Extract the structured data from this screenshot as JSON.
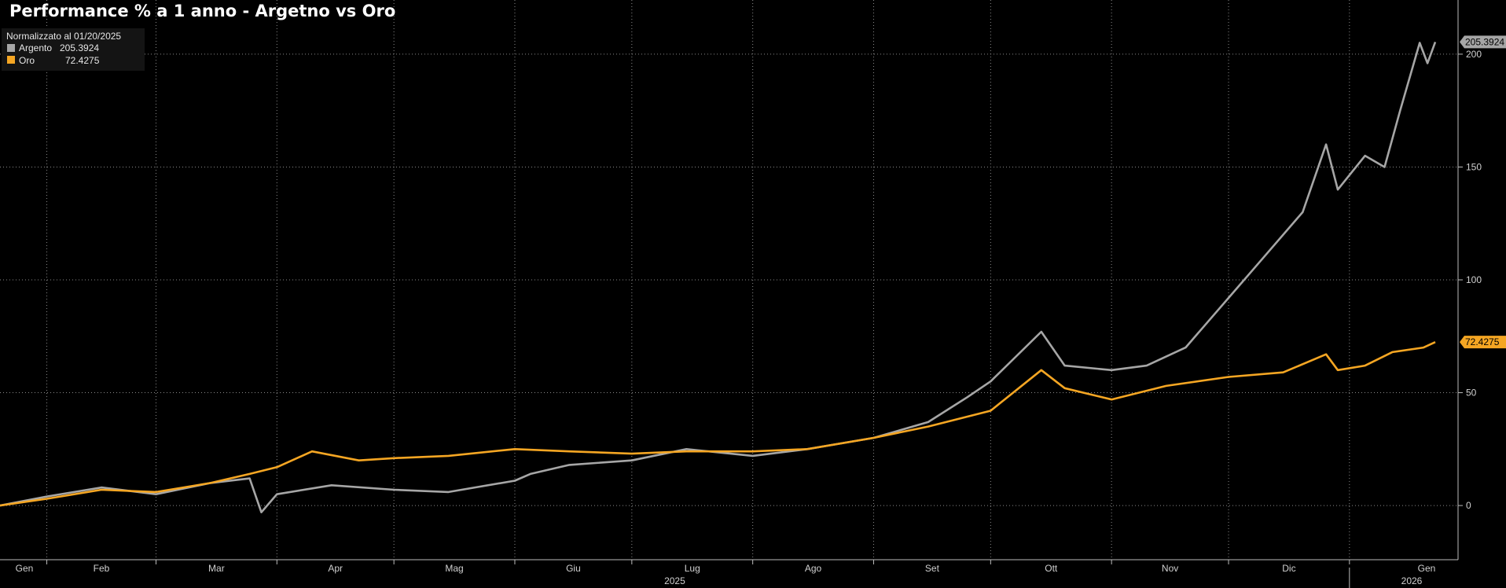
{
  "chart_data": {
    "type": "line",
    "title": "Performance % a 1 anno - Argetno vs Oro",
    "subtitle": "Normalizzato al 01/20/2025",
    "x_months": [
      "Gen",
      "Feb",
      "Mar",
      "Apr",
      "Mag",
      "Giu",
      "Lug",
      "Ago",
      "Set",
      "Ott",
      "Nov",
      "Dic",
      "Gen"
    ],
    "year_labels": [
      "2025",
      "2026"
    ],
    "y_ticks": [
      0,
      50,
      100,
      150,
      200
    ],
    "ylim": [
      -24,
      224
    ],
    "xlim": [
      "2025-01-20",
      "2026-01-23"
    ],
    "grid": true,
    "legend": "top-left",
    "series": [
      {
        "name": "Argento",
        "last_value": "205.3924",
        "color": "#a6a6a6",
        "x": [
          "2025-01-20",
          "2025-02-01",
          "2025-02-15",
          "2025-03-01",
          "2025-03-15",
          "2025-03-25",
          "2025-03-28",
          "2025-04-01",
          "2025-04-15",
          "2025-05-01",
          "2025-05-15",
          "2025-06-01",
          "2025-06-05",
          "2025-06-15",
          "2025-07-01",
          "2025-07-15",
          "2025-08-01",
          "2025-08-15",
          "2025-09-01",
          "2025-09-15",
          "2025-09-25",
          "2025-10-01",
          "2025-10-14",
          "2025-10-20",
          "2025-11-01",
          "2025-11-10",
          "2025-11-20",
          "2025-12-01",
          "2025-12-10",
          "2025-12-20",
          "2025-12-26",
          "2025-12-29",
          "2026-01-05",
          "2026-01-10",
          "2026-01-14",
          "2026-01-19",
          "2026-01-21",
          "2026-01-23"
        ],
        "values": [
          0,
          4,
          8,
          5,
          10,
          12,
          -3,
          5,
          9,
          7,
          6,
          11,
          14,
          18,
          20,
          25,
          22,
          25,
          30,
          37,
          48,
          55,
          77,
          62,
          60,
          62,
          70,
          92,
          110,
          130,
          160,
          140,
          155,
          150,
          175,
          205,
          196,
          205.3924
        ]
      },
      {
        "name": "Oro",
        "last_value": "72.4275",
        "color": "#f5a623",
        "x": [
          "2025-01-20",
          "2025-02-01",
          "2025-02-15",
          "2025-03-01",
          "2025-03-15",
          "2025-03-25",
          "2025-04-01",
          "2025-04-10",
          "2025-04-22",
          "2025-05-01",
          "2025-05-15",
          "2025-06-01",
          "2025-06-15",
          "2025-07-01",
          "2025-07-15",
          "2025-08-01",
          "2025-08-15",
          "2025-09-01",
          "2025-09-15",
          "2025-10-01",
          "2025-10-14",
          "2025-10-20",
          "2025-11-01",
          "2025-11-15",
          "2025-12-01",
          "2025-12-15",
          "2025-12-26",
          "2025-12-29",
          "2026-01-05",
          "2026-01-12",
          "2026-01-20",
          "2026-01-23"
        ],
        "values": [
          0,
          3,
          7,
          6,
          10,
          14,
          17,
          24,
          20,
          21,
          22,
          25,
          24,
          23,
          24,
          24,
          25,
          30,
          35,
          42,
          60,
          52,
          47,
          53,
          57,
          59,
          67,
          60,
          62,
          68,
          70,
          72.4275
        ]
      }
    ]
  }
}
